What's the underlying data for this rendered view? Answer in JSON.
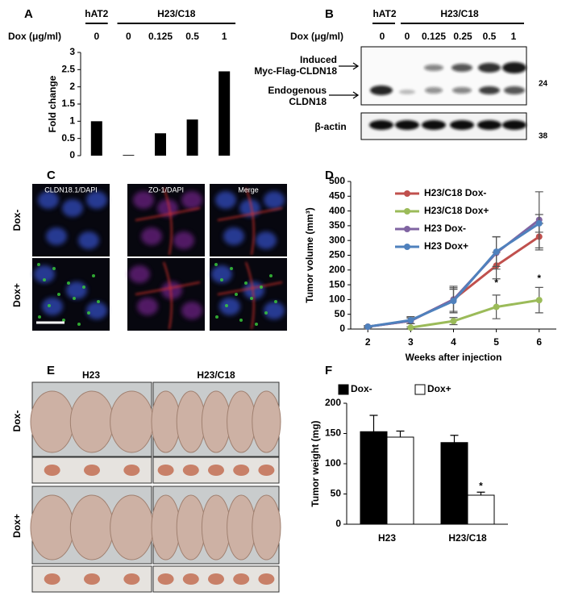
{
  "panel_labels": [
    "A",
    "B",
    "C",
    "D",
    "E",
    "F"
  ],
  "blot": {
    "groups": [
      "hAT2",
      "H23/C18"
    ],
    "dose_label": "Dox (μg/ml)",
    "lanes": [
      "0",
      "0",
      "0.125",
      "0.25",
      "0.5",
      "1"
    ],
    "induced": [
      "Induced",
      "Myc-Flag-CLDN18"
    ],
    "endogenous": [
      "Endogenous",
      "CLDN18"
    ],
    "loading": "β-actin",
    "markers": [
      "24",
      "38"
    ]
  },
  "micrographs": {
    "columns": [
      "CLDN18.1/DAPI",
      "ZO-1/DAPI",
      "Merge"
    ],
    "rows": [
      "Dox-",
      "Dox+"
    ]
  },
  "photos": {
    "columns": [
      "H23",
      "H23/C18"
    ],
    "rows": [
      "Dox-",
      "Dox+"
    ]
  },
  "chart_data": [
    {
      "type": "bar",
      "ylabel": "Fold change",
      "xlabel": "Dox (μg/ml)",
      "groups": [
        "hAT2",
        "H23/C18"
      ],
      "categories": [
        "0",
        "0",
        "0.125",
        "0.5",
        "1"
      ],
      "values": [
        1,
        0.02,
        0.65,
        1.05,
        2.45
      ],
      "color": "#000000",
      "ylim": [
        0,
        3
      ],
      "yticks": [
        0,
        0.5,
        1,
        1.5,
        2,
        2.5,
        3
      ]
    },
    {
      "type": "line",
      "xlabel": "Weeks after injection",
      "ylabel": "Tumor volume (mm³)",
      "x": [
        2,
        3,
        4,
        5,
        6
      ],
      "xlim": [
        1.6,
        6.4
      ],
      "xticks": [
        2,
        3,
        4,
        5,
        6
      ],
      "ylim": [
        0,
        500
      ],
      "yticks": [
        0,
        50,
        100,
        150,
        200,
        250,
        300,
        350,
        400,
        450,
        500
      ],
      "legend": "upper left",
      "series": [
        {
          "name": "H23/C18 Dox-",
          "color": "#c0504d",
          "values": [
            8,
            28,
            100,
            215,
            313
          ],
          "errors": [
            3,
            10,
            40,
            45,
            45
          ]
        },
        {
          "name": "H23/C18 Dox+",
          "color": "#9bbb59",
          "values": [
            null,
            5,
            27,
            75,
            98
          ],
          "errors": [
            null,
            3,
            12,
            40,
            43
          ]
        },
        {
          "name": "H23 Dox-",
          "color": "#8064a2",
          "values": [
            8,
            28,
            100,
            258,
            370
          ],
          "errors": [
            3,
            10,
            45,
            55,
            95
          ]
        },
        {
          "name": "H23 Dox+",
          "color": "#4f81bd",
          "values": [
            8,
            30,
            95,
            262,
            358
          ],
          "errors": [
            3,
            12,
            40,
            50,
            30
          ]
        }
      ],
      "annotations": [
        {
          "text": "*",
          "x": 5,
          "y": 155
        },
        {
          "text": "*",
          "x": 6,
          "y": 170
        }
      ]
    },
    {
      "type": "bar",
      "ylabel": "Tumor weight (mg)",
      "categories": [
        "H23",
        "H23/C18"
      ],
      "ylim": [
        0,
        200
      ],
      "yticks": [
        0,
        50,
        100,
        150,
        200
      ],
      "legend": "top",
      "series": [
        {
          "name": "Dox-",
          "color": "#000000",
          "values": [
            153,
            135
          ],
          "errors": [
            27,
            12
          ]
        },
        {
          "name": "Dox+",
          "color": "#ffffff",
          "values": [
            144,
            48
          ],
          "errors": [
            10,
            5
          ]
        }
      ],
      "annotations": [
        {
          "text": "*",
          "x": "H23/C18",
          "y": 62
        }
      ]
    }
  ]
}
